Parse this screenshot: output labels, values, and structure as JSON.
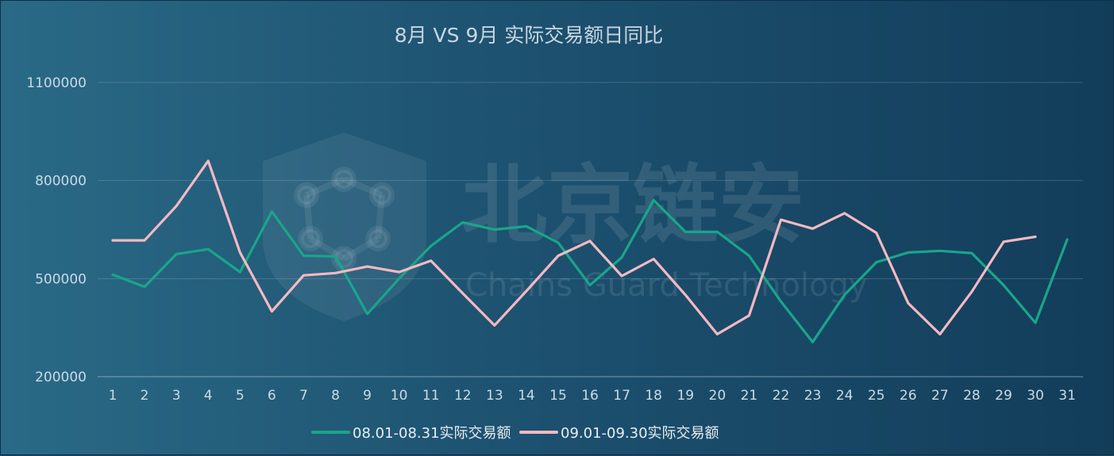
{
  "chart_data": {
    "type": "line",
    "title": "8月 VS 9月 实际交易额日同比",
    "xlabel": "",
    "ylabel": "",
    "categories": [
      "1",
      "2",
      "3",
      "4",
      "5",
      "6",
      "7",
      "8",
      "9",
      "10",
      "11",
      "12",
      "13",
      "14",
      "15",
      "16",
      "17",
      "18",
      "19",
      "20",
      "21",
      "22",
      "23",
      "24",
      "25",
      "26",
      "27",
      "28",
      "29",
      "30",
      "31"
    ],
    "yticks": [
      "200000",
      "500000",
      "800000",
      "1100000"
    ],
    "ylim": [
      200000,
      1100000
    ],
    "grid": true,
    "legend_position": "bottom",
    "series": [
      {
        "name": "08.01-08.31实际交易额",
        "color": "#1aa58a",
        "values": [
          512000,
          475000,
          575000,
          590000,
          520000,
          705000,
          570000,
          568000,
          392000,
          500000,
          600000,
          672000,
          650000,
          660000,
          610000,
          480000,
          565000,
          740000,
          643000,
          643000,
          570000,
          430000,
          306000,
          450000,
          550000,
          580000,
          585000,
          578000,
          480000,
          365000,
          620000
        ]
      },
      {
        "name": "09.01-09.30实际交易额",
        "color": "#f4b9c3",
        "values": [
          617000,
          617000,
          722000,
          860000,
          580000,
          400000,
          510000,
          517000,
          537000,
          520000,
          555000,
          455000,
          357000,
          462000,
          570000,
          615000,
          508000,
          560000,
          450000,
          330000,
          387000,
          680000,
          653000,
          700000,
          640000,
          425000,
          330000,
          460000,
          613000,
          628000,
          null
        ]
      }
    ]
  },
  "watermark": {
    "title": "北京链安",
    "subtitle": "Chains Guard Technology"
  }
}
